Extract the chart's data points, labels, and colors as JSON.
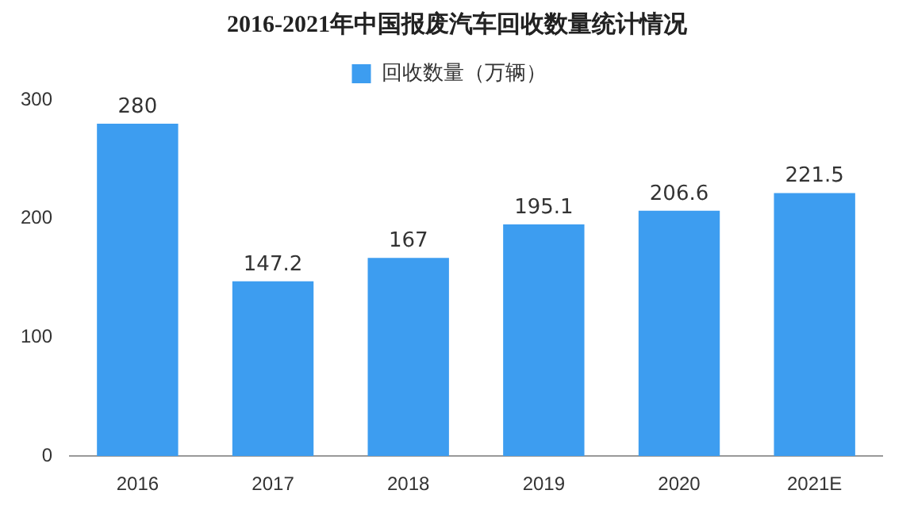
{
  "chart_data": {
    "type": "bar",
    "title": "2016-2021年中国报废汽车回收数量统计情况",
    "categories": [
      "2016",
      "2017",
      "2018",
      "2019",
      "2020",
      "2021E"
    ],
    "series": [
      {
        "name": "回收数量（万辆）",
        "color": "#3d9df0",
        "values": [
          280,
          147.2,
          167,
          195.1,
          206.6,
          221.5
        ]
      }
    ],
    "ylim": [
      0,
      300
    ],
    "yticks": [
      0,
      100,
      200,
      300
    ],
    "grid": false,
    "legend": "top",
    "data_labels": true
  }
}
